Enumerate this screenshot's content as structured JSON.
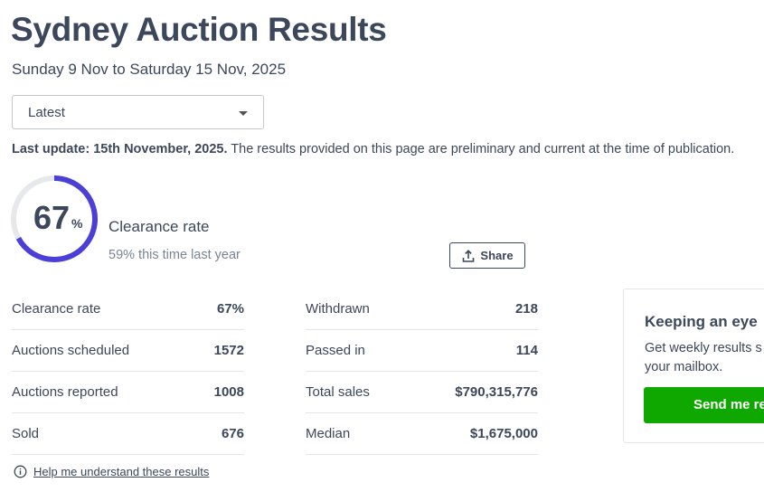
{
  "page": {
    "title": "Sydney Auction Results",
    "date_range": "Sunday 9 Nov to Saturday 15 Nov, 2025"
  },
  "period_select": {
    "value": "Latest",
    "icon": "caret-down-icon"
  },
  "update": {
    "label": "Last update: 15th November, 2025.",
    "text": " The results provided on this page are preliminary and current at the time of publication."
  },
  "clearance": {
    "value": "67",
    "percent_sign": "%",
    "fraction": 0.67,
    "label": "Clearance rate",
    "last_year": "59% this time last year",
    "ring_color": "#4a3fd6",
    "track_color": "#e6e8ec"
  },
  "share": {
    "label": "Share",
    "icon": "share-upload-icon"
  },
  "stats_left": [
    {
      "label": "Clearance rate",
      "value": "67%"
    },
    {
      "label": "Auctions scheduled",
      "value": "1572"
    },
    {
      "label": "Auctions reported",
      "value": "1008"
    },
    {
      "label": "Sold",
      "value": "676"
    }
  ],
  "stats_right": [
    {
      "label": "Withdrawn",
      "value": "218"
    },
    {
      "label": "Passed in",
      "value": "114"
    },
    {
      "label": "Total sales",
      "value": "$790,315,776"
    },
    {
      "label": "Median",
      "value": "$1,675,000"
    }
  ],
  "help": {
    "label": "Help me understand these results",
    "icon": "info-icon"
  },
  "promo": {
    "title": "Keeping an eye",
    "text_line1": "Get weekly results s",
    "text_line2": "your mailbox.",
    "button": "Send me re",
    "button_color": "#0ea800"
  }
}
